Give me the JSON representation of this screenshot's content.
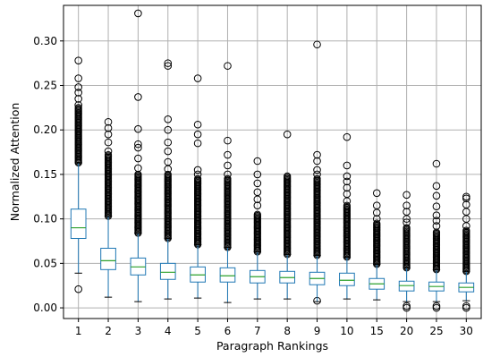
{
  "chart_data": {
    "type": "box",
    "title": "",
    "xlabel": "Paragraph Rankings",
    "ylabel": "Normalized Attention",
    "ylim": [
      -0.012,
      0.34
    ],
    "yticks": [
      0.0,
      0.05,
      0.1,
      0.15,
      0.2,
      0.25,
      0.3
    ],
    "ytick_labels": [
      "0.00",
      "0.05",
      "0.10",
      "0.15",
      "0.20",
      "0.25",
      "0.30"
    ],
    "grid": true,
    "legend": "none",
    "colors": {
      "box": "#1f77b4",
      "median": "#2ca02c",
      "flier": "#000000",
      "grid": "#b0b0b0"
    },
    "categories": [
      "1",
      "2",
      "3",
      "4",
      "5",
      "6",
      "7",
      "8",
      "9",
      "10",
      "15",
      "20",
      "25",
      "30"
    ],
    "boxes": [
      {
        "category": "1",
        "whislo": 0.039,
        "q1": 0.078,
        "med": 0.09,
        "q3": 0.111,
        "whishi": 0.163,
        "outliers_dense": [
          0.163,
          0.225
        ],
        "outliers": [
          0.021,
          0.228,
          0.235,
          0.242,
          0.248,
          0.258,
          0.278
        ]
      },
      {
        "category": "2",
        "whislo": 0.012,
        "q1": 0.043,
        "med": 0.053,
        "q3": 0.067,
        "whishi": 0.103,
        "outliers_dense": [
          0.103,
          0.172
        ],
        "outliers": [
          0.176,
          0.186,
          0.195,
          0.202,
          0.209
        ]
      },
      {
        "category": "3",
        "whislo": 0.007,
        "q1": 0.037,
        "med": 0.046,
        "q3": 0.056,
        "whishi": 0.084,
        "outliers_dense": [
          0.084,
          0.15
        ],
        "outliers": [
          0.157,
          0.168,
          0.18,
          0.184,
          0.201,
          0.237,
          0.331
        ]
      },
      {
        "category": "4",
        "whislo": 0.01,
        "q1": 0.032,
        "med": 0.04,
        "q3": 0.05,
        "whishi": 0.078,
        "outliers_dense": [
          0.078,
          0.15
        ],
        "outliers": [
          0.156,
          0.164,
          0.176,
          0.186,
          0.2,
          0.212,
          0.272,
          0.275
        ]
      },
      {
        "category": "5",
        "whislo": 0.011,
        "q1": 0.029,
        "med": 0.037,
        "q3": 0.046,
        "whishi": 0.071,
        "outliers_dense": [
          0.071,
          0.145
        ],
        "outliers": [
          0.15,
          0.155,
          0.185,
          0.195,
          0.206,
          0.258
        ]
      },
      {
        "category": "6",
        "whislo": 0.006,
        "q1": 0.029,
        "med": 0.036,
        "q3": 0.045,
        "whishi": 0.068,
        "outliers_dense": [
          0.068,
          0.145
        ],
        "outliers": [
          0.15,
          0.16,
          0.172,
          0.188,
          0.272
        ]
      },
      {
        "category": "7",
        "whislo": 0.01,
        "q1": 0.028,
        "med": 0.035,
        "q3": 0.042,
        "whishi": 0.063,
        "outliers_dense": [
          0.063,
          0.105
        ],
        "outliers": [
          0.115,
          0.122,
          0.13,
          0.14,
          0.15,
          0.165
        ]
      },
      {
        "category": "8",
        "whislo": 0.01,
        "q1": 0.028,
        "med": 0.034,
        "q3": 0.041,
        "whishi": 0.06,
        "outliers_dense": [
          0.06,
          0.148
        ],
        "outliers": [
          0.195
        ]
      },
      {
        "category": "9",
        "whislo": 0.007,
        "q1": 0.026,
        "med": 0.033,
        "q3": 0.04,
        "whishi": 0.059,
        "outliers_dense": [
          0.059,
          0.145
        ],
        "outliers": [
          0.008,
          0.15,
          0.155,
          0.165,
          0.172,
          0.296
        ]
      },
      {
        "category": "10",
        "whislo": 0.01,
        "q1": 0.025,
        "med": 0.031,
        "q3": 0.039,
        "whishi": 0.057,
        "outliers_dense": [
          0.057,
          0.115
        ],
        "outliers": [
          0.12,
          0.128,
          0.135,
          0.142,
          0.148,
          0.16,
          0.192
        ]
      },
      {
        "category": "15",
        "whislo": 0.009,
        "q1": 0.021,
        "med": 0.027,
        "q3": 0.033,
        "whishi": 0.049,
        "outliers_dense": [
          0.049,
          0.095
        ],
        "outliers": [
          0.1,
          0.107,
          0.115,
          0.129
        ]
      },
      {
        "category": "20",
        "whislo": 0.007,
        "q1": 0.019,
        "med": 0.025,
        "q3": 0.03,
        "whishi": 0.045,
        "outliers_dense": [
          0.045,
          0.09
        ],
        "outliers": [
          0.0,
          0.002,
          0.096,
          0.1,
          0.108,
          0.115,
          0.127
        ]
      },
      {
        "category": "25",
        "whislo": 0.007,
        "q1": 0.019,
        "med": 0.024,
        "q3": 0.029,
        "whishi": 0.043,
        "outliers_dense": [
          0.043,
          0.085
        ],
        "outliers": [
          0.0,
          0.002,
          0.092,
          0.098,
          0.104,
          0.114,
          0.126,
          0.137,
          0.162
        ]
      },
      {
        "category": "30",
        "whislo": 0.008,
        "q1": 0.018,
        "med": 0.023,
        "q3": 0.028,
        "whishi": 0.041,
        "outliers_dense": [
          0.041,
          0.087
        ],
        "outliers": [
          0.0,
          0.002,
          0.092,
          0.1,
          0.108,
          0.116,
          0.123,
          0.125
        ]
      }
    ]
  }
}
